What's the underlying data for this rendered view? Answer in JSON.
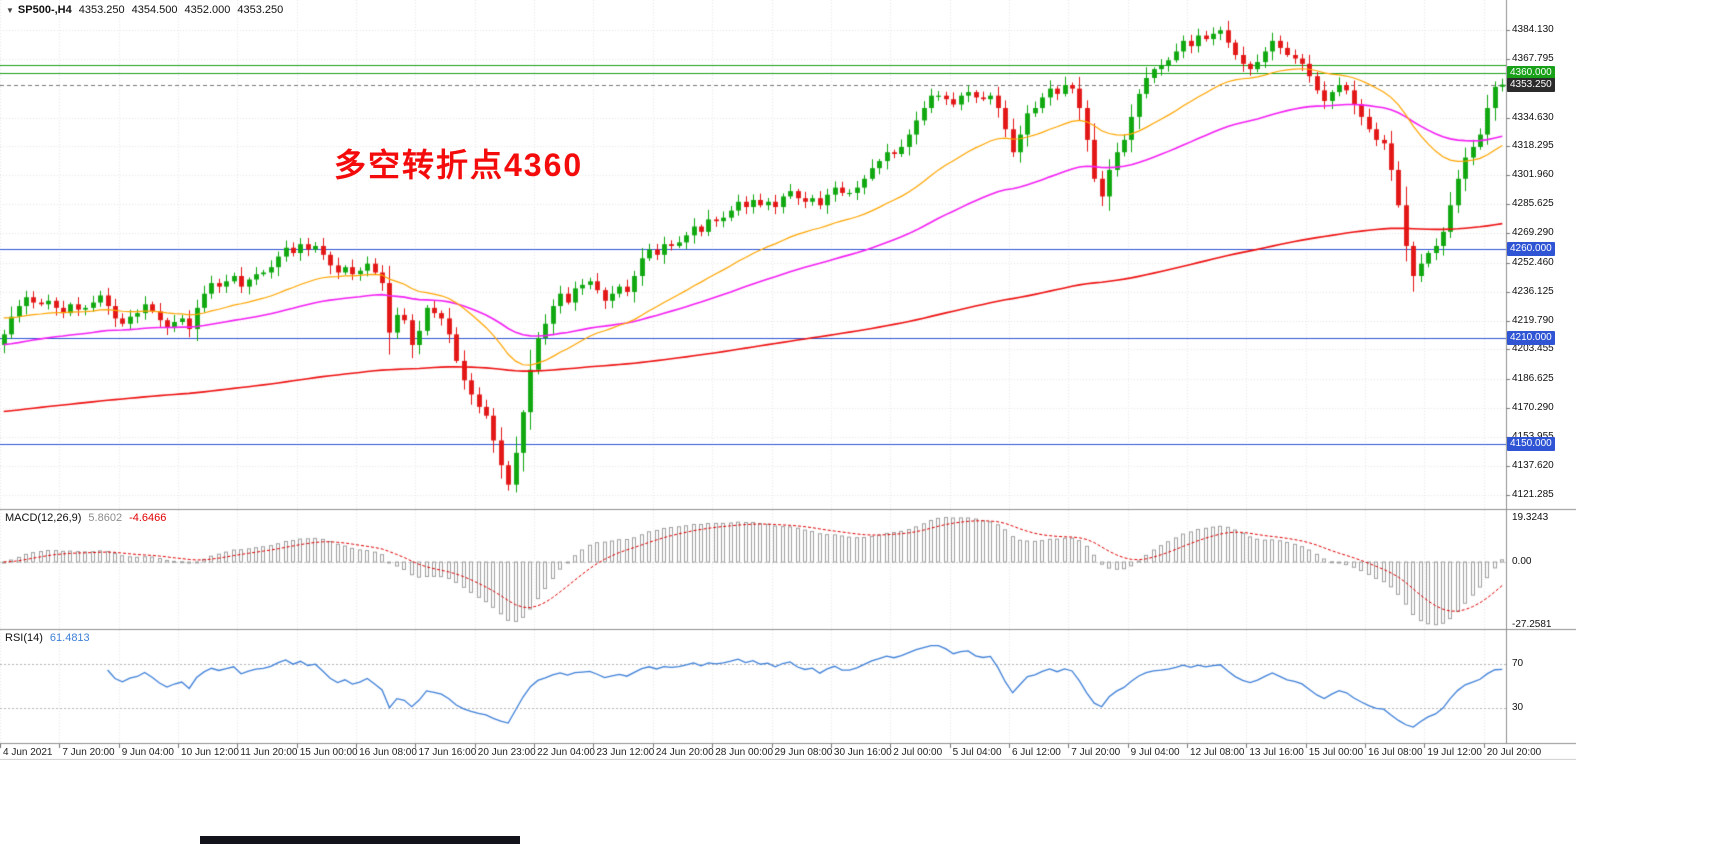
{
  "header": {
    "collapse_icon": "▼",
    "symbol": "SP500-,H4",
    "open": "4353.250",
    "high": "4354.500",
    "low": "4352.000",
    "close": "4353.250"
  },
  "annotation": {
    "text": "多空转折点4360",
    "color": "#f40b0b"
  },
  "chart_data": {
    "type": "candlestick",
    "symbol": "SP500-",
    "timeframe": "H4",
    "title": "SP500-,H4 4353.250 4354.500 4352.000 4353.250",
    "current_price": 4353.25,
    "current_label": "4353.250",
    "current_label_bg": "#2b2b2b",
    "last_ohlc": {
      "open": 4353.25,
      "high": 4354.5,
      "low": 4352.0,
      "close": 4353.25
    },
    "ylim": [
      4113.8,
      4401.1
    ],
    "price_ticks": [
      "4384.130",
      "4367.795",
      "4334.630",
      "4318.295",
      "4301.960",
      "4285.625",
      "4269.290",
      "4252.460",
      "4236.125",
      "4219.790",
      "4203.455",
      "4186.625",
      "4170.290",
      "4153.955",
      "4137.620",
      "4121.285"
    ],
    "time_labels": [
      "4 Jun 2021",
      "7 Jun 20:00",
      "9 Jun 04:00",
      "10 Jun 12:00",
      "11 Jun 20:00",
      "15 Jun 00:00",
      "16 Jun 08:00",
      "17 Jun 16:00",
      "20 Jun 23:00",
      "22 Jun 04:00",
      "23 Jun 12:00",
      "24 Jun 20:00",
      "28 Jun 00:00",
      "29 Jun 08:00",
      "30 Jun 16:00",
      "2 Jul 00:00",
      "5 Jul 04:00",
      "6 Jul 12:00",
      "7 Jul 20:00",
      "9 Jul 04:00",
      "12 Jul 08:00",
      "13 Jul 16:00",
      "15 Jul 00:00",
      "16 Jul 08:00",
      "19 Jul 12:00",
      "20 Jul 20:00"
    ],
    "bars_per_label": 8,
    "first_open": 4206,
    "closes": [
      4212,
      4222,
      4228,
      4233,
      4230,
      4229,
      4231,
      4227,
      4224,
      4229,
      4226,
      4227,
      4230,
      4234,
      4228,
      4221,
      4218,
      4222,
      4224,
      4229,
      4225,
      4220,
      4216,
      4219,
      4221,
      4215,
      4227,
      4235,
      4241,
      4239,
      4242,
      4245,
      4239,
      4243,
      4246,
      4247,
      4250,
      4256,
      4261,
      4258,
      4263,
      4260,
      4262,
      4257,
      4251,
      4247,
      4250,
      4246,
      4248,
      4252,
      4247,
      4241,
      4213,
      4223,
      4220,
      4206,
      4214,
      4227,
      4224,
      4221,
      4212,
      4197,
      4186,
      4178,
      4171,
      4166,
      4152,
      4138,
      4127,
      4145,
      4168,
      4192,
      4210,
      4218,
      4228,
      4235,
      4230,
      4238,
      4240,
      4242,
      4237,
      4231,
      4235,
      4239,
      4236,
      4245,
      4255,
      4260,
      4257,
      4263,
      4262,
      4264,
      4268,
      4273,
      4270,
      4277,
      4276,
      4278,
      4282,
      4287,
      4284,
      4288,
      4285,
      4287,
      4284,
      4290,
      4293,
      4289,
      4287,
      4289,
      4285,
      4291,
      4295,
      4292,
      4292,
      4295,
      4300,
      4306,
      4310,
      4315,
      4314,
      4318,
      4325,
      4333,
      4340,
      4347,
      4347,
      4345,
      4342,
      4347,
      4349,
      4346,
      4345,
      4347,
      4340,
      4328,
      4315,
      4325,
      4337,
      4340,
      4346,
      4351,
      4348,
      4353,
      4351,
      4340,
      4322,
      4300,
      4290,
      4305,
      4315,
      4322,
      4335,
      4348,
      4357,
      4362,
      4364,
      4367,
      4372,
      4378,
      4375,
      4381,
      4379,
      4382,
      4384,
      4377,
      4370,
      4365,
      4362,
      4366,
      4372,
      4378,
      4374,
      4370,
      4368,
      4365,
      4358,
      4350,
      4344,
      4349,
      4353,
      4350,
      4342,
      4335,
      4328,
      4322,
      4320,
      4305,
      4285,
      4262,
      4245,
      4252,
      4258,
      4262,
      4270,
      4285,
      4300,
      4312,
      4318,
      4325,
      4340,
      4352,
      4353.25
    ],
    "up_color": "#0fa80f",
    "down_color": "#e31616",
    "moving_averages": [
      {
        "name": "fast-ma",
        "alpha": 0.07,
        "seed": 4222,
        "color": "#ffa500"
      },
      {
        "name": "mid-ma",
        "alpha": 0.031,
        "seed": 4206,
        "color": "#f320f3"
      },
      {
        "name": "slow-ma",
        "alpha": 0.008,
        "seed": 4168,
        "color": "#ee1111"
      }
    ],
    "hlines": [
      {
        "price": 4364.5,
        "color": "#18a018",
        "label": ""
      },
      {
        "price": 4360.0,
        "color": "#18a018",
        "label": "4360.000"
      },
      {
        "price": 4260.0,
        "color": "#2f55d4",
        "label": "4260.000"
      },
      {
        "price": 4210.0,
        "color": "#2f55d4",
        "label": "4210.000"
      },
      {
        "price": 4150.0,
        "color": "#2f55d4",
        "label": "4150.000"
      }
    ],
    "macd": {
      "label": "MACD(12,26,9)",
      "fast": 12,
      "slow": 26,
      "signal": 9,
      "value_main": "5.8602",
      "value_signal": "-4.6466",
      "scale_labels": [
        "19.3243",
        "0.00",
        "-27.2581"
      ],
      "scale_range": [
        -27.2581,
        19.3243
      ],
      "histogram_color": "#a0a0a0",
      "signal_color": "#e00000"
    },
    "rsi": {
      "label": "RSI(14)",
      "period": 14,
      "value": "61.4813",
      "levels": [
        70,
        30
      ],
      "scale_labels": [
        "70",
        "30"
      ],
      "line_color": "#3f80d8"
    }
  }
}
